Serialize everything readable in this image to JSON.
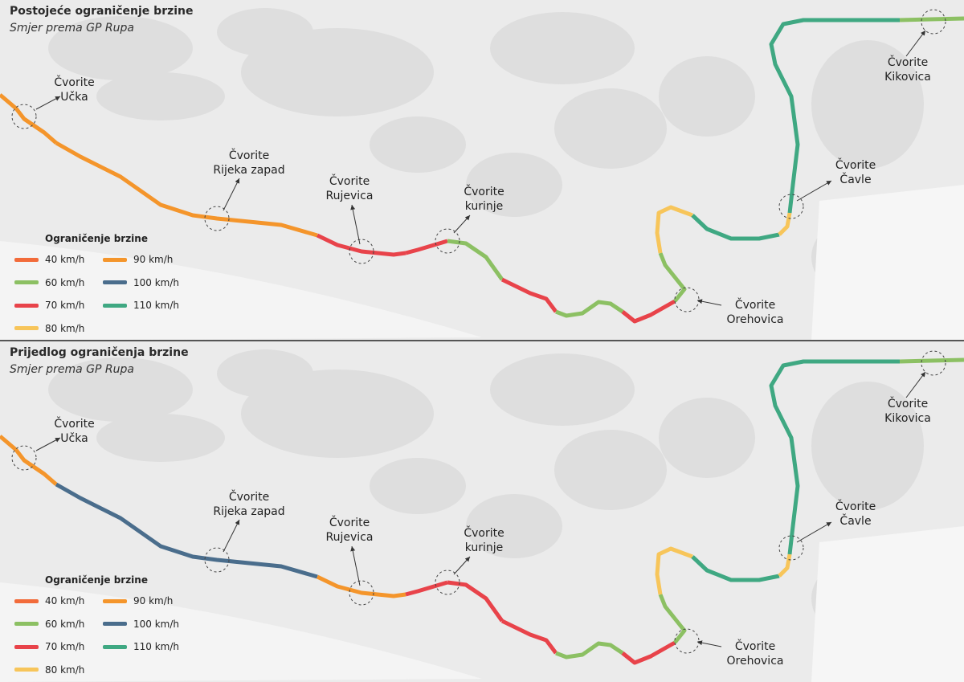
{
  "colors": {
    "40": "#f26b3a",
    "60": "#8cc063",
    "70": "#e8434a",
    "80": "#f7c55a",
    "90": "#f4952b",
    "100": "#4a6d8c",
    "110": "#3fa882",
    "background": "#ebebeb"
  },
  "panels": [
    {
      "title": "Postojeće ograničenje brzine",
      "subtitle": "Smjer prema GP Rupa",
      "segment_speeds_kmh": [
        90,
        90,
        70,
        70,
        60,
        70,
        60,
        70,
        60,
        80,
        110,
        80,
        110,
        60
      ]
    },
    {
      "title": "Prijedlog ograničenja brzine",
      "subtitle": "Smjer prema GP Rupa",
      "segment_speeds_kmh": [
        90,
        100,
        90,
        70,
        70,
        70,
        60,
        70,
        60,
        80,
        110,
        80,
        110,
        60
      ]
    }
  ],
  "nodes": [
    {
      "line1": "Čvorite",
      "line2": "Učka"
    },
    {
      "line1": "Čvorite",
      "line2": "Rijeka zapad"
    },
    {
      "line1": "Čvorite",
      "line2": "Rujevica"
    },
    {
      "line1": "Čvorite",
      "line2": "kurinje"
    },
    {
      "line1": "Čvorite",
      "line2": "Orehovica"
    },
    {
      "line1": "Čvorite",
      "line2": "Čavle"
    },
    {
      "line1": "Čvorite",
      "line2": "Kikovica"
    }
  ],
  "legend": {
    "title": "Ograničenje brzine",
    "items": [
      {
        "label": "40 km/h",
        "speed": "40"
      },
      {
        "label": "60 km/h",
        "speed": "60"
      },
      {
        "label": "70 km/h",
        "speed": "70"
      },
      {
        "label": "80 km/h",
        "speed": "80"
      },
      {
        "label": "90 km/h",
        "speed": "90"
      },
      {
        "label": "100 km/h",
        "speed": "100"
      },
      {
        "label": "110 km/h",
        "speed": "110"
      }
    ]
  }
}
